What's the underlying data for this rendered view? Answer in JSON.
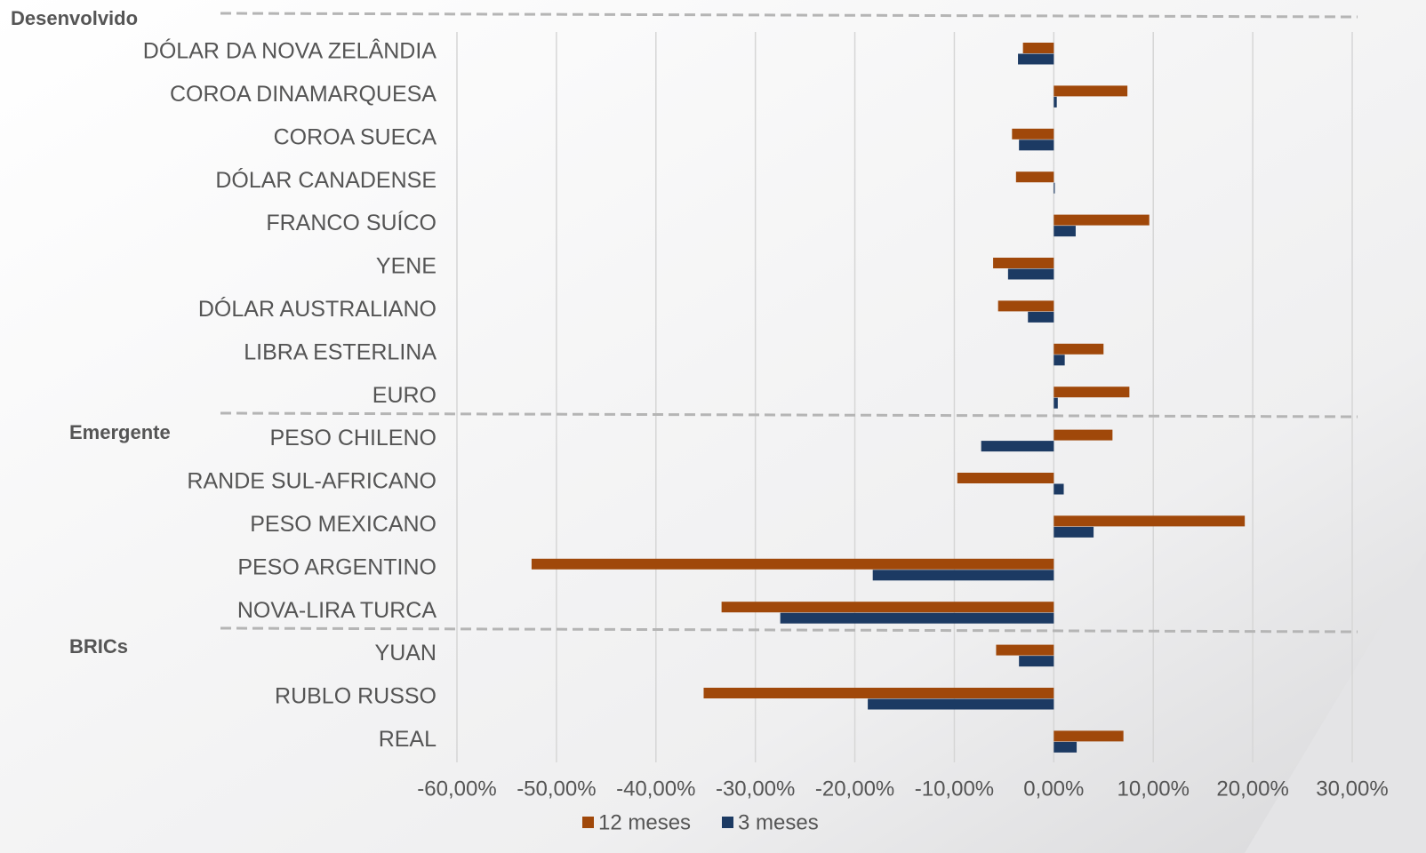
{
  "chart_data": {
    "type": "bar",
    "orientation": "horizontal",
    "groups": [
      "Desenvolvido",
      "Emergente",
      "BRICs"
    ],
    "categories": [
      "DÓLAR DA NOVA ZELÂNDIA",
      "COROA DINAMARQUESA",
      "COROA SUECA",
      "DÓLAR CANADENSE",
      "FRANCO SUÍCO",
      "YENE",
      "DÓLAR AUSTRALIANO",
      "LIBRA ESTERLINA",
      "EURO",
      "PESO CHILENO",
      "RANDE SUL-AFRICANO",
      "PESO MEXICANO",
      "PESO ARGENTINO",
      "NOVA-LIRA TURCA",
      "YUAN",
      "RUBLO RUSSO",
      "REAL"
    ],
    "series": [
      {
        "name": "12 meses",
        "color": "#a0480a",
        "values": [
          -3.1,
          7.4,
          -4.2,
          -3.8,
          9.6,
          -6.1,
          -5.6,
          5.0,
          7.6,
          5.9,
          -9.7,
          19.2,
          -52.5,
          -33.4,
          -5.8,
          -35.2,
          7.0
        ]
      },
      {
        "name": "3 meses",
        "color": "#1c3a63",
        "values": [
          -3.6,
          0.3,
          -3.5,
          0.1,
          2.2,
          -4.6,
          -2.6,
          1.1,
          0.4,
          -7.3,
          1.0,
          4.0,
          -18.2,
          -27.5,
          -3.5,
          -18.7,
          2.3
        ]
      }
    ],
    "xlim": [
      -60,
      30
    ],
    "xticks": [
      {
        "value": -60,
        "label": "-60,00%"
      },
      {
        "value": -50,
        "label": "-50,00%"
      },
      {
        "value": -40,
        "label": "-40,00%"
      },
      {
        "value": -30,
        "label": "-30,00%"
      },
      {
        "value": -20,
        "label": "-20,00%"
      },
      {
        "value": -10,
        "label": "-10,00%"
      },
      {
        "value": 0,
        "label": "0,00%"
      },
      {
        "value": 10,
        "label": "10,00%"
      },
      {
        "value": 20,
        "label": "20,00%"
      },
      {
        "value": 30,
        "label": "30,00%"
      }
    ],
    "grid": true,
    "legend": "bottom"
  }
}
